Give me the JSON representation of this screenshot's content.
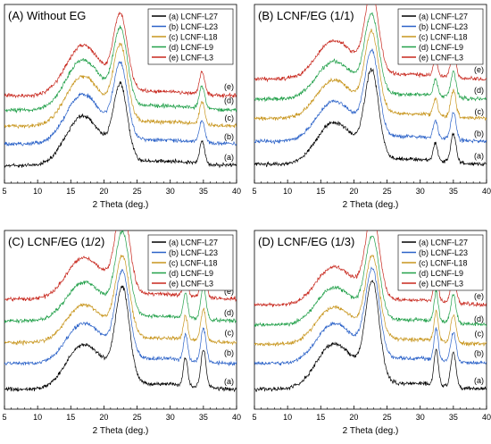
{
  "figure": {
    "panels": [
      {
        "label": "(A)",
        "title": "Without EG"
      },
      {
        "label": "(B)",
        "title": "LCNF/EG  (1/1)"
      },
      {
        "label": "(C)",
        "title": "LCNF/EG  (1/2)"
      },
      {
        "label": "(D)",
        "title": "LCNF/EG  (1/3)"
      }
    ]
  },
  "chart_data": [
    {
      "type": "line",
      "label": "(A)",
      "title": "Without EG",
      "xlabel": "2 Theta (deg.)",
      "ylabel": "",
      "xlim": [
        5,
        40
      ],
      "xticks": [
        5,
        10,
        15,
        20,
        25,
        30,
        35,
        40
      ],
      "y_ticks_shown": false,
      "legend": "top-right",
      "series": [
        {
          "name": "(a) LCNF-L27",
          "curve_label": "(a)",
          "color": "#000000"
        },
        {
          "name": "(b) LCNF-L23",
          "curve_label": "(b)",
          "color": "#2b62c8"
        },
        {
          "name": "(c) LCNF-L18",
          "curve_label": "(c)",
          "color": "#c8961e"
        },
        {
          "name": "(d) LCNF-L9",
          "curve_label": "(d)",
          "color": "#22a04a"
        },
        {
          "name": "(e) LCNF-L3",
          "curve_label": "(e)",
          "color": "#c8281e"
        }
      ],
      "peaks": {
        "broad_shoulder": 16.5,
        "main": 22.5,
        "secondary": 34.8
      },
      "peak_heights": {
        "broad_shoulder": 0.62,
        "main": 1.0,
        "secondary": 0.32
      }
    },
    {
      "type": "line",
      "label": "(B)",
      "title": "LCNF/EG  (1/1)",
      "xlabel": "2 Theta (deg.)",
      "ylabel": "",
      "xlim": [
        5,
        40
      ],
      "xticks": [
        5,
        10,
        15,
        20,
        25,
        30,
        35,
        40
      ],
      "y_ticks_shown": false,
      "legend": "top-right",
      "series": [
        {
          "name": "(a) LCNF-L27",
          "curve_label": "(a)",
          "color": "#000000"
        },
        {
          "name": "(b) LCNF-L23",
          "curve_label": "(b)",
          "color": "#2b62c8"
        },
        {
          "name": "(c) LCNF-L18",
          "curve_label": "(c)",
          "color": "#c8961e"
        },
        {
          "name": "(d) LCNF-L9",
          "curve_label": "(d)",
          "color": "#22a04a"
        },
        {
          "name": "(e) LCNF-L3",
          "curve_label": "(e)",
          "color": "#c8281e"
        }
      ],
      "peaks": {
        "broad_shoulder": 16.5,
        "main": 22.7,
        "tertiary": 32.3,
        "secondary": 35.0
      },
      "peak_heights": {
        "broad_shoulder": 0.42,
        "main": 1.0,
        "tertiary": 0.22,
        "secondary": 0.35
      }
    },
    {
      "type": "line",
      "label": "(C)",
      "title": "LCNF/EG  (1/2)",
      "xlabel": "2 Theta (deg.)",
      "ylabel": "",
      "xlim": [
        5,
        40
      ],
      "xticks": [
        5,
        10,
        15,
        20,
        25,
        30,
        35,
        40
      ],
      "y_ticks_shown": false,
      "legend": "top-right",
      "series": [
        {
          "name": "(a) LCNF-L27",
          "curve_label": "(a)",
          "color": "#000000"
        },
        {
          "name": "(b) LCNF-L23",
          "curve_label": "(b)",
          "color": "#2b62c8"
        },
        {
          "name": "(c) LCNF-L18",
          "curve_label": "(c)",
          "color": "#c8961e"
        },
        {
          "name": "(d) LCNF-L9",
          "curve_label": "(d)",
          "color": "#22a04a"
        },
        {
          "name": "(e) LCNF-L3",
          "curve_label": "(e)",
          "color": "#c8281e"
        }
      ],
      "peaks": {
        "broad_shoulder": 16.5,
        "main": 22.8,
        "tertiary": 32.3,
        "secondary": 35.0
      },
      "peak_heights": {
        "broad_shoulder": 0.42,
        "main": 1.0,
        "tertiary": 0.32,
        "secondary": 0.42
      }
    },
    {
      "type": "line",
      "label": "(D)",
      "title": "LCNF/EG  (1/3)",
      "xlabel": "2 Theta (deg.)",
      "ylabel": "",
      "xlim": [
        5,
        40
      ],
      "xticks": [
        5,
        10,
        15,
        20,
        25,
        30,
        35,
        40
      ],
      "y_ticks_shown": false,
      "legend": "top-right",
      "series": [
        {
          "name": "(a) LCNF-L27",
          "curve_label": "(a)",
          "color": "#000000"
        },
        {
          "name": "(b) LCNF-L23",
          "curve_label": "(b)",
          "color": "#2b62c8"
        },
        {
          "name": "(c) LCNF-L18",
          "curve_label": "(c)",
          "color": "#c8961e"
        },
        {
          "name": "(d) LCNF-L9",
          "curve_label": "(d)",
          "color": "#22a04a"
        },
        {
          "name": "(e) LCNF-L3",
          "curve_label": "(e)",
          "color": "#c8281e"
        }
      ],
      "peaks": {
        "broad_shoulder": 16.5,
        "main": 22.8,
        "tertiary": 32.4,
        "secondary": 35.0
      },
      "peak_heights": {
        "broad_shoulder": 0.4,
        "main": 1.0,
        "tertiary": 0.38,
        "secondary": 0.36
      }
    }
  ]
}
